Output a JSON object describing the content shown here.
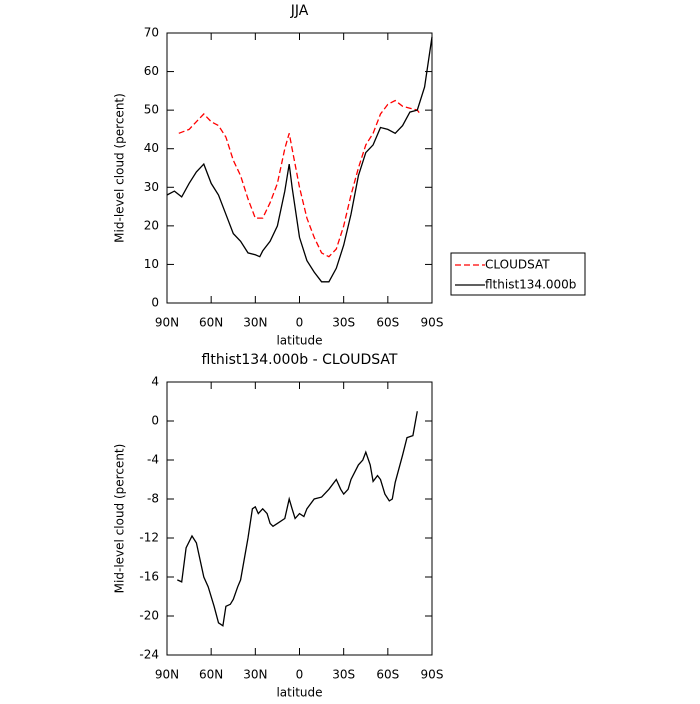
{
  "chart_data": [
    {
      "type": "line",
      "title": "JJA",
      "xlabel": "latitude",
      "ylabel": "Mid-level cloud (percent)",
      "xlim": [
        90,
        -90
      ],
      "xticks": [
        {
          "value": 90,
          "label": "90N"
        },
        {
          "value": 60,
          "label": "60N"
        },
        {
          "value": 30,
          "label": "30N"
        },
        0,
        {
          "value": -30,
          "label": "30S"
        },
        {
          "value": -60,
          "label": "60S"
        },
        {
          "value": -90,
          "label": "90S"
        }
      ],
      "ylim": [
        0,
        70
      ],
      "yticks": [
        0,
        10,
        20,
        30,
        40,
        50,
        60,
        70
      ],
      "legend": "right",
      "series": [
        {
          "name": "CLOUDSAT",
          "color": "#ff0000",
          "dashed": true,
          "x": [
            82,
            75,
            70,
            65,
            60,
            55,
            50,
            45,
            40,
            35,
            30,
            25,
            20,
            15,
            10,
            7,
            5,
            0,
            -5,
            -10,
            -15,
            -20,
            -25,
            -30,
            -35,
            -40,
            -45,
            -50,
            -55,
            -60,
            -65,
            -70,
            -75,
            -80,
            -82
          ],
          "values": [
            44,
            45,
            47,
            49,
            47,
            46,
            43,
            37,
            33,
            27,
            22,
            22,
            26,
            31,
            40,
            44,
            40,
            30,
            22,
            17,
            13,
            12,
            14,
            20,
            28,
            35,
            41,
            44,
            49,
            51.5,
            52.5,
            51,
            50.5,
            50,
            49
          ]
        },
        {
          "name": "flthist134.000b",
          "color": "#000000",
          "dashed": false,
          "x": [
            90,
            85,
            80,
            75,
            70,
            65,
            60,
            55,
            50,
            45,
            40,
            35,
            30,
            27,
            25,
            20,
            15,
            10,
            7,
            5,
            0,
            -5,
            -10,
            -15,
            -20,
            -25,
            -30,
            -35,
            -40,
            -45,
            -50,
            -55,
            -60,
            -65,
            -70,
            -75,
            -80,
            -85,
            -90
          ],
          "values": [
            28,
            29,
            27.5,
            31,
            34,
            36,
            31,
            28,
            23,
            18,
            16,
            13,
            12.5,
            12,
            13.5,
            16,
            20,
            29,
            36,
            30,
            17,
            11,
            8,
            5.5,
            5.5,
            9,
            15,
            23,
            33,
            39,
            41,
            45.5,
            45,
            44,
            46,
            49.5,
            50,
            56,
            69
          ]
        }
      ]
    },
    {
      "type": "line",
      "title": "flthist134.000b - CLOUDSAT",
      "xlabel": "latitude",
      "ylabel": "Mid-level cloud (percent)",
      "xlim": [
        90,
        -90
      ],
      "xticks": [
        {
          "value": 90,
          "label": "90N"
        },
        {
          "value": 60,
          "label": "60N"
        },
        {
          "value": 30,
          "label": "30N"
        },
        0,
        {
          "value": -30,
          "label": "30S"
        },
        {
          "value": -60,
          "label": "60S"
        },
        {
          "value": -90,
          "label": "90S"
        }
      ],
      "ylim": [
        -24,
        4
      ],
      "yticks": [
        -24,
        -20,
        -16,
        -12,
        -8,
        -4,
        0,
        4
      ],
      "series": [
        {
          "color": "#000000",
          "dashed": false,
          "x": [
            83,
            80,
            77,
            73,
            70,
            65,
            62,
            58,
            55,
            52,
            50,
            47,
            45,
            42,
            40,
            35,
            32,
            30,
            28,
            25,
            22,
            20,
            18,
            15,
            10,
            7,
            5,
            3,
            0,
            -3,
            -5,
            -10,
            -15,
            -20,
            -25,
            -28,
            -30,
            -33,
            -35,
            -40,
            -43,
            -45,
            -48,
            -50,
            -53,
            -55,
            -58,
            -61,
            -63,
            -65,
            -70,
            -73,
            -77,
            -80
          ],
          "values": [
            -16.3,
            -16.5,
            -13,
            -11.8,
            -12.5,
            -16,
            -17,
            -19,
            -20.7,
            -21,
            -19,
            -18.8,
            -18.3,
            -17,
            -16.3,
            -12,
            -9,
            -8.8,
            -9.5,
            -9,
            -9.5,
            -10.5,
            -10.8,
            -10.5,
            -10,
            -8,
            -9,
            -10,
            -9.5,
            -9.8,
            -9,
            -8,
            -7.8,
            -7,
            -6,
            -7,
            -7.5,
            -7,
            -6,
            -4.5,
            -4,
            -3.2,
            -4.5,
            -6.2,
            -5.6,
            -6,
            -7.5,
            -8.2,
            -8,
            -6.3,
            -3.5,
            -1.7,
            -1.5,
            1
          ]
        }
      ]
    }
  ]
}
